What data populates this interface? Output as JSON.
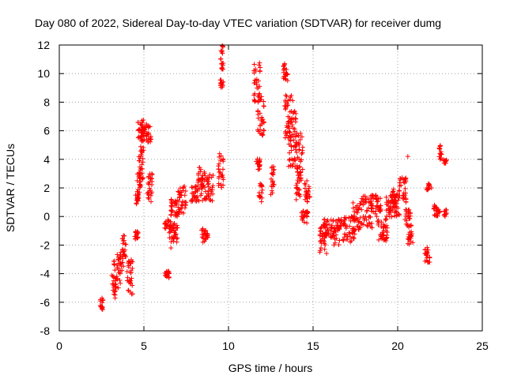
{
  "chart_data": {
    "type": "scatter",
    "title": "Day 080 of 2022, Sidereal Day-to-day VTEC variation (SDTVAR) for receiver dumg",
    "xlabel": "GPS time / hours",
    "ylabel": "SDTVAR / TECUs",
    "xlim": [
      0,
      25
    ],
    "ylim": [
      -8,
      12
    ],
    "xticks": [
      "0",
      "5",
      "10",
      "15",
      "20",
      "25"
    ],
    "yticks": [
      "-8",
      "-6",
      "-4",
      "-2",
      "0",
      "2",
      "4",
      "6",
      "8",
      "10",
      "12"
    ],
    "grid": true,
    "marker": "plus",
    "color": "#ff0000",
    "series": [
      {
        "name": "SDTVAR",
        "segments": [
          [
            2.4,
            2.6,
            -6.7,
            -5.7
          ],
          [
            3.1,
            3.4,
            -5.5,
            -3.0
          ],
          [
            3.4,
            3.7,
            -5.0,
            -2.5
          ],
          [
            3.7,
            3.95,
            -3.5,
            -1.3
          ],
          [
            4.0,
            4.35,
            -5.5,
            -3.0
          ],
          [
            4.45,
            4.7,
            -1.6,
            -1.0
          ],
          [
            4.5,
            4.7,
            0.8,
            1.5
          ],
          [
            4.6,
            4.8,
            1.5,
            3.0
          ],
          [
            4.7,
            5.0,
            2.5,
            4.5
          ],
          [
            4.8,
            5.0,
            4.5,
            6.2
          ],
          [
            4.6,
            5.0,
            5.5,
            6.8
          ],
          [
            5.0,
            5.45,
            5.2,
            6.5
          ],
          [
            5.2,
            5.5,
            1.0,
            3.0
          ],
          [
            6.2,
            6.5,
            -4.3,
            -3.8
          ],
          [
            6.2,
            6.6,
            -0.9,
            -0.2
          ],
          [
            6.5,
            7.0,
            -1.8,
            -0.4
          ],
          [
            6.6,
            7.1,
            0.0,
            1.3
          ],
          [
            7.0,
            7.5,
            0.2,
            2.2
          ],
          [
            7.8,
            8.2,
            1.0,
            2.2
          ],
          [
            8.2,
            8.6,
            1.0,
            3.5
          ],
          [
            8.4,
            8.8,
            -1.8,
            -0.8
          ],
          [
            8.6,
            9.1,
            1.0,
            3.0
          ],
          [
            9.4,
            9.7,
            2.0,
            4.5
          ],
          [
            9.5,
            9.7,
            9.0,
            9.6
          ],
          [
            9.5,
            9.7,
            10.3,
            12.0
          ],
          [
            11.5,
            11.9,
            8.0,
            10.8
          ],
          [
            11.7,
            12.1,
            5.5,
            8.5
          ],
          [
            11.6,
            11.9,
            3.3,
            4.1
          ],
          [
            11.8,
            12.0,
            1.0,
            2.5
          ],
          [
            12.5,
            12.7,
            1.5,
            3.7
          ],
          [
            13.2,
            13.5,
            9.5,
            10.8
          ],
          [
            13.3,
            13.8,
            5.5,
            8.5
          ],
          [
            13.5,
            14.0,
            3.5,
            7.5
          ],
          [
            13.9,
            14.4,
            3.0,
            6.0
          ],
          [
            14.0,
            14.3,
            1.0,
            3.0
          ],
          [
            14.3,
            14.7,
            -0.5,
            0.5
          ],
          [
            14.5,
            14.8,
            1.0,
            2.5
          ],
          [
            15.4,
            15.8,
            -2.8,
            -0.5
          ],
          [
            15.6,
            16.2,
            -1.5,
            0.0
          ],
          [
            16.2,
            16.8,
            -2.0,
            -0.2
          ],
          [
            16.8,
            17.5,
            -1.8,
            0.0
          ],
          [
            17.3,
            17.8,
            -1.0,
            1.0
          ],
          [
            17.8,
            18.5,
            -0.8,
            1.5
          ],
          [
            18.4,
            19.0,
            0.0,
            1.5
          ],
          [
            18.8,
            19.4,
            -1.8,
            0.0
          ],
          [
            19.3,
            19.9,
            -0.2,
            1.5
          ],
          [
            19.6,
            20.1,
            0.0,
            2.0
          ],
          [
            20.1,
            20.5,
            1.0,
            2.8
          ],
          [
            20.4,
            20.8,
            -0.8,
            0.5
          ],
          [
            20.6,
            20.9,
            -2.0,
            -1.0
          ],
          [
            21.6,
            21.9,
            -3.2,
            -2.0
          ],
          [
            21.7,
            21.9,
            1.6,
            2.3
          ],
          [
            22.1,
            22.5,
            0.0,
            0.8
          ],
          [
            22.4,
            22.6,
            4.0,
            5.0
          ],
          [
            22.7,
            22.9,
            0.0,
            0.5
          ],
          [
            22.7,
            22.9,
            3.7,
            4.0
          ]
        ],
        "points": [
          [
            20.6,
            4.2
          ],
          [
            22.0,
            2.0
          ],
          [
            6.6,
            -2.2
          ],
          [
            3.3,
            -5.7
          ]
        ]
      }
    ]
  }
}
